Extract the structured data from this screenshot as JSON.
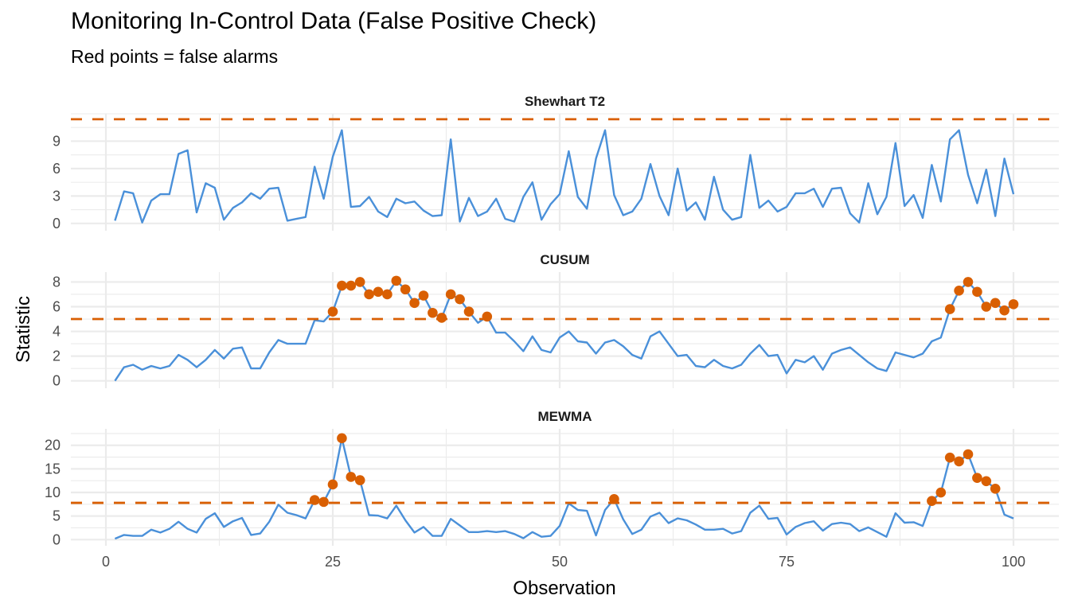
{
  "chart_data": {
    "type": "line",
    "title": "Monitoring In-Control Data (False Positive Check)",
    "subtitle": "Red points = false alarms",
    "xlabel": "Observation",
    "ylabel": "Statistic",
    "xlim": [
      -7.5,
      105
    ],
    "x_ticks": [
      0,
      25,
      50,
      75,
      100
    ],
    "grid": true,
    "colors": {
      "series": "#4A90D9",
      "limit": "#D95F02",
      "alarm": "#D95F02",
      "grid": "#EBEBEB"
    },
    "facets": [
      {
        "name": "Shewhart T2",
        "ylim": [
          -0.8,
          12
        ],
        "y_ticks": [
          0,
          3,
          6,
          9
        ],
        "limit": 11.4,
        "values": [
          0.3,
          3.5,
          3.3,
          0.1,
          2.5,
          3.2,
          3.2,
          7.6,
          8.0,
          1.2,
          4.4,
          3.9,
          0.4,
          1.7,
          2.3,
          3.3,
          2.7,
          3.8,
          3.9,
          0.3,
          0.5,
          0.7,
          6.2,
          2.7,
          7.3,
          10.2,
          1.8,
          1.9,
          2.9,
          1.3,
          0.7,
          2.7,
          2.2,
          2.4,
          1.4,
          0.8,
          0.9,
          9.2,
          0.2,
          2.8,
          0.8,
          1.3,
          2.7,
          0.5,
          0.2,
          2.9,
          4.5,
          0.4,
          2.1,
          3.2,
          7.9,
          2.9,
          1.6,
          7.1,
          10.2,
          3.1,
          0.9,
          1.3,
          2.7,
          6.5,
          3.0,
          0.9,
          6.0,
          1.4,
          2.3,
          0.4,
          5.1,
          1.5,
          0.4,
          0.7,
          7.5,
          1.7,
          2.5,
          1.3,
          1.8,
          3.3,
          3.3,
          3.8,
          1.8,
          3.8,
          3.9,
          1.1,
          0.1,
          4.4,
          1.0,
          2.9,
          8.8,
          1.9,
          3.1,
          0.6,
          6.4,
          2.4,
          9.2,
          10.2,
          5.3,
          2.2,
          5.9,
          0.8,
          7.1,
          3.2
        ]
      },
      {
        "name": "CUSUM",
        "ylim": [
          -0.6,
          8.8
        ],
        "y_ticks": [
          0,
          2,
          4,
          6,
          8
        ],
        "limit": 5.0,
        "values": [
          0.0,
          1.1,
          1.3,
          0.9,
          1.2,
          1.0,
          1.2,
          2.1,
          1.7,
          1.1,
          1.7,
          2.5,
          1.8,
          2.6,
          2.7,
          1.0,
          1.0,
          2.3,
          3.3,
          3.0,
          3.0,
          3.0,
          4.9,
          4.8,
          5.6,
          7.7,
          7.7,
          8.0,
          7.0,
          7.2,
          7.0,
          8.1,
          7.4,
          6.3,
          6.9,
          5.5,
          5.1,
          7.0,
          6.6,
          5.6,
          4.7,
          5.2,
          3.9,
          3.9,
          3.2,
          2.4,
          3.6,
          2.5,
          2.3,
          3.5,
          4.0,
          3.2,
          3.1,
          2.2,
          3.1,
          3.3,
          2.8,
          2.1,
          1.8,
          3.6,
          4.0,
          3.0,
          2.0,
          2.1,
          1.2,
          1.1,
          1.7,
          1.2,
          1.0,
          1.3,
          2.2,
          2.9,
          2.0,
          2.1,
          0.6,
          1.7,
          1.5,
          2.0,
          0.9,
          2.2,
          2.5,
          2.7,
          2.1,
          1.5,
          1.0,
          0.8,
          2.3,
          2.1,
          1.9,
          2.2,
          3.2,
          3.5,
          5.8,
          7.3,
          8.0,
          7.2,
          6.0,
          6.3,
          5.7,
          6.2
        ]
      },
      {
        "name": "MEWMA",
        "ylim": [
          -1.3,
          23.5
        ],
        "y_ticks": [
          0,
          5,
          10,
          15,
          20
        ],
        "limit": 7.8,
        "values": [
          0.2,
          1.0,
          0.8,
          0.8,
          2.1,
          1.5,
          2.3,
          3.8,
          2.3,
          1.5,
          4.4,
          5.6,
          2.7,
          3.9,
          4.6,
          1.0,
          1.3,
          3.8,
          7.4,
          5.7,
          5.2,
          4.5,
          8.4,
          8.0,
          11.7,
          21.5,
          13.3,
          12.6,
          5.2,
          5.1,
          4.5,
          7.2,
          4.1,
          1.5,
          2.7,
          0.8,
          0.8,
          4.4,
          3.0,
          1.6,
          1.6,
          1.8,
          1.6,
          1.8,
          1.2,
          0.3,
          1.6,
          0.6,
          0.8,
          2.9,
          7.7,
          6.3,
          6.1,
          0.9,
          6.3,
          8.6,
          4.3,
          1.2,
          2.1,
          4.9,
          5.7,
          3.5,
          4.5,
          4.1,
          3.2,
          2.1,
          2.1,
          2.3,
          1.3,
          1.8,
          5.7,
          7.2,
          4.4,
          4.6,
          1.1,
          2.7,
          3.5,
          3.9,
          1.9,
          3.3,
          3.6,
          3.3,
          1.8,
          2.6,
          1.6,
          0.6,
          5.6,
          3.6,
          3.7,
          2.9,
          8.2,
          10.0,
          17.4,
          16.6,
          18.1,
          13.1,
          12.4,
          10.8,
          5.3,
          4.5
        ]
      }
    ]
  }
}
